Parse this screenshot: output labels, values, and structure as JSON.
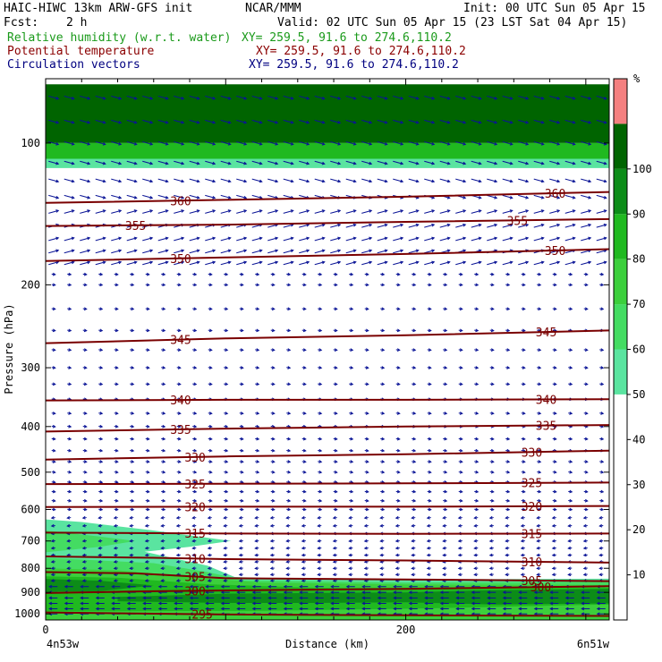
{
  "header": {
    "model": "HAIC-HIWC 13km ARW-GFS init",
    "org": "NCAR/MMM",
    "init": "Init: 00 UTC Sun 05 Apr 15",
    "fcst_label": "Fcst:",
    "fcst_value": "2 h",
    "valid": "Valid: 02 UTC Sun 05 Apr 15 (23 LST Sat 04 Apr 15)"
  },
  "fields": [
    {
      "name": "Relative humidity (w.r.t. water)",
      "xy": "XY= 259.5, 91.6 to 274.6,110.2",
      "color": "#1a9a1a"
    },
    {
      "name": "Potential temperature",
      "xy": "XY= 259.5, 91.6 to 274.6,110.2",
      "color": "#8b0000"
    },
    {
      "name": "Circulation vectors",
      "xy": "XY= 259.5, 91.6 to 274.6,110.2",
      "color": "#000080"
    }
  ],
  "axes": {
    "ylabel": "Pressure (hPa)",
    "xlabel": "Distance (km)",
    "x_left": "4n53w",
    "x_right": "6n51w"
  },
  "chart_data": {
    "type": "heatmap",
    "x_axis": {
      "label": "Distance (km)",
      "range": [
        0,
        313
      ],
      "ticks": [
        0,
        200
      ]
    },
    "y_axis": {
      "label": "Pressure (hPa)",
      "scale": "log",
      "range": [
        1030,
        73
      ],
      "ticks": [
        100,
        200,
        300,
        400,
        500,
        600,
        700,
        800,
        900,
        1000
      ]
    },
    "colorbar": {
      "unit": "%",
      "levels": [
        10,
        20,
        30,
        40,
        50,
        60,
        70,
        80,
        90,
        100
      ],
      "colors": [
        "#ffffff",
        "#ffffff",
        "#ffffff",
        "#ffffff",
        "#ffffff",
        "#5ae4a0",
        "#44dc62",
        "#3ccf3c",
        "#20b920",
        "#0c8c18",
        "#006400",
        "#f48080"
      ]
    },
    "theta_contours": [
      {
        "level": 360,
        "labels": [
          {
            "x": 75,
            "text": "360"
          },
          {
            "x": 283,
            "text": "360"
          }
        ],
        "points": [
          [
            0,
            134
          ],
          [
            100,
            132
          ],
          [
            200,
            130
          ],
          [
            313,
            127
          ]
        ]
      },
      {
        "level": 355,
        "labels": [
          {
            "x": 50,
            "text": "355"
          },
          {
            "x": 262,
            "text": "355"
          }
        ],
        "points": [
          [
            0,
            150
          ],
          [
            100,
            149
          ],
          [
            200,
            147
          ],
          [
            313,
            145
          ]
        ]
      },
      {
        "level": 350,
        "labels": [
          {
            "x": 75,
            "text": "350"
          },
          {
            "x": 283,
            "text": "350"
          }
        ],
        "points": [
          [
            0,
            178
          ],
          [
            100,
            175
          ],
          [
            200,
            172
          ],
          [
            313,
            168
          ]
        ]
      },
      {
        "level": 345,
        "labels": [
          {
            "x": 75,
            "text": "345"
          },
          {
            "x": 278,
            "text": "345"
          }
        ],
        "points": [
          [
            0,
            266
          ],
          [
            100,
            260
          ],
          [
            200,
            256
          ],
          [
            313,
            250
          ]
        ]
      },
      {
        "level": 340,
        "labels": [
          {
            "x": 75,
            "text": "340"
          },
          {
            "x": 278,
            "text": "340"
          }
        ],
        "points": [
          [
            0,
            352
          ],
          [
            100,
            351
          ],
          [
            200,
            351
          ],
          [
            313,
            350
          ]
        ]
      },
      {
        "level": 335,
        "labels": [
          {
            "x": 75,
            "text": "335"
          },
          {
            "x": 278,
            "text": "335"
          }
        ],
        "points": [
          [
            0,
            410
          ],
          [
            100,
            404
          ],
          [
            200,
            400
          ],
          [
            313,
            397
          ]
        ]
      },
      {
        "level": 330,
        "labels": [
          {
            "x": 83,
            "text": "330"
          },
          {
            "x": 270,
            "text": "330"
          }
        ],
        "points": [
          [
            0,
            470
          ],
          [
            100,
            463
          ],
          [
            200,
            458
          ],
          [
            313,
            450
          ]
        ]
      },
      {
        "level": 325,
        "labels": [
          {
            "x": 83,
            "text": "325"
          },
          {
            "x": 270,
            "text": "325"
          }
        ],
        "points": [
          [
            0,
            530
          ],
          [
            100,
            529
          ],
          [
            200,
            528
          ],
          [
            313,
            526
          ]
        ]
      },
      {
        "level": 320,
        "labels": [
          {
            "x": 83,
            "text": "320"
          },
          {
            "x": 270,
            "text": "320"
          }
        ],
        "points": [
          [
            0,
            593
          ],
          [
            100,
            592
          ],
          [
            200,
            592
          ],
          [
            313,
            590
          ]
        ]
      },
      {
        "level": 315,
        "labels": [
          {
            "x": 83,
            "text": "315"
          },
          {
            "x": 270,
            "text": "315"
          }
        ],
        "points": [
          [
            0,
            672
          ],
          [
            100,
            675
          ],
          [
            200,
            676
          ],
          [
            313,
            675
          ]
        ]
      },
      {
        "level": 310,
        "labels": [
          {
            "x": 83,
            "text": "310"
          },
          {
            "x": 270,
            "text": "310"
          }
        ],
        "points": [
          [
            0,
            755
          ],
          [
            60,
            760
          ],
          [
            100,
            765
          ],
          [
            200,
            770
          ],
          [
            313,
            778
          ]
        ]
      },
      {
        "level": 305,
        "labels": [
          {
            "x": 83,
            "text": "305"
          },
          {
            "x": 270,
            "text": "305"
          }
        ],
        "points": [
          [
            0,
            815
          ],
          [
            50,
            820
          ],
          [
            100,
            840
          ],
          [
            200,
            845
          ],
          [
            313,
            852
          ]
        ]
      },
      {
        "level": 300,
        "labels": [
          {
            "x": 83,
            "text": "300"
          },
          {
            "x": 275,
            "text": "300"
          }
        ],
        "points": [
          [
            0,
            903
          ],
          [
            60,
            895
          ],
          [
            120,
            890
          ],
          [
            200,
            885
          ],
          [
            313,
            873
          ]
        ]
      },
      {
        "level": 295,
        "labels": [
          {
            "x": 87,
            "text": "295"
          }
        ],
        "points": [
          [
            0,
            993
          ],
          [
            100,
            1003
          ],
          [
            200,
            1007
          ],
          [
            313,
            1010
          ]
        ]
      }
    ],
    "rh_regions": [
      {
        "color": "#5ae4a0",
        "polygon": [
          [
            0,
            630
          ],
          [
            20,
            638
          ],
          [
            60,
            665
          ],
          [
            103,
            700
          ],
          [
            80,
            720
          ],
          [
            55,
            738
          ],
          [
            70,
            760
          ],
          [
            90,
            790
          ],
          [
            105,
            835
          ],
          [
            140,
            843
          ],
          [
            200,
            845
          ],
          [
            313,
            842
          ],
          [
            313,
            1030
          ],
          [
            0,
            1030
          ]
        ]
      },
      {
        "color": "#44dc62",
        "polygon": [
          [
            0,
            665
          ],
          [
            30,
            685
          ],
          [
            50,
            700
          ],
          [
            30,
            720
          ],
          [
            0,
            740
          ],
          [
            0,
            760
          ],
          [
            30,
            770
          ],
          [
            60,
            780
          ],
          [
            90,
            815
          ],
          [
            110,
            848
          ],
          [
            200,
            858
          ],
          [
            313,
            855
          ],
          [
            313,
            1030
          ],
          [
            0,
            1030
          ]
        ]
      },
      {
        "color": "#3ccf3c",
        "polygon": [
          [
            0,
            800
          ],
          [
            40,
            808
          ],
          [
            80,
            835
          ],
          [
            120,
            858
          ],
          [
            200,
            866
          ],
          [
            313,
            868
          ],
          [
            313,
            1030
          ],
          [
            0,
            1030
          ]
        ]
      },
      {
        "color": "#20b920",
        "polygon": [
          [
            0,
            832
          ],
          [
            40,
            838
          ],
          [
            90,
            865
          ],
          [
            150,
            880
          ],
          [
            250,
            882
          ],
          [
            313,
            880
          ],
          [
            313,
            955
          ],
          [
            200,
            975
          ],
          [
            120,
            985
          ],
          [
            0,
            988
          ]
        ]
      },
      {
        "color": "#0c8c18",
        "polygon": [
          [
            0,
            843
          ],
          [
            30,
            850
          ],
          [
            60,
            870
          ],
          [
            30,
            895
          ],
          [
            0,
            897
          ]
        ]
      },
      {
        "color": "#0c8c18",
        "polygon": [
          [
            40,
            920
          ],
          [
            100,
            906
          ],
          [
            160,
            902
          ],
          [
            200,
            900
          ],
          [
            250,
            890
          ],
          [
            313,
            885
          ],
          [
            313,
            950
          ],
          [
            250,
            955
          ],
          [
            200,
            945
          ],
          [
            150,
            948
          ],
          [
            100,
            948
          ],
          [
            40,
            940
          ]
        ]
      },
      {
        "color": "#006400",
        "polygon": [
          [
            0,
            75
          ],
          [
            313,
            75
          ],
          [
            313,
            100
          ],
          [
            0,
            100
          ]
        ]
      },
      {
        "color": "#20b920",
        "polygon": [
          [
            0,
            100
          ],
          [
            313,
            100
          ],
          [
            313,
            108
          ],
          [
            0,
            108
          ]
        ]
      },
      {
        "color": "#5ae4a0",
        "polygon": [
          [
            0,
            108
          ],
          [
            313,
            108
          ],
          [
            313,
            113
          ],
          [
            0,
            113
          ]
        ]
      }
    ]
  }
}
